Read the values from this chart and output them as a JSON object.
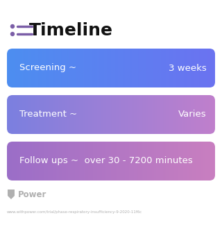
{
  "title": "Timeline",
  "background_color": "#ffffff",
  "icon_color": "#7b5ea7",
  "title_color": "#111111",
  "title_fontsize": 18,
  "rows": [
    {
      "label": "Screening ~",
      "value": "3 weeks",
      "color_left": "#4d8ef0",
      "color_right": "#6b73f0"
    },
    {
      "label": "Treatment ~",
      "value": "Varies",
      "color_left": "#7b80e0",
      "color_right": "#c07fcc"
    },
    {
      "label": "Follow ups ~  over 30 - 7200 minutes",
      "value": "",
      "color_left": "#9b6ec8",
      "color_right": "#c97fc0"
    }
  ],
  "footer_text": "Power",
  "footer_url": "www.withpower.com/trial/phase-respiratory-insufficiency-9-2020-11f6c",
  "footer_color": "#b0b0b0"
}
